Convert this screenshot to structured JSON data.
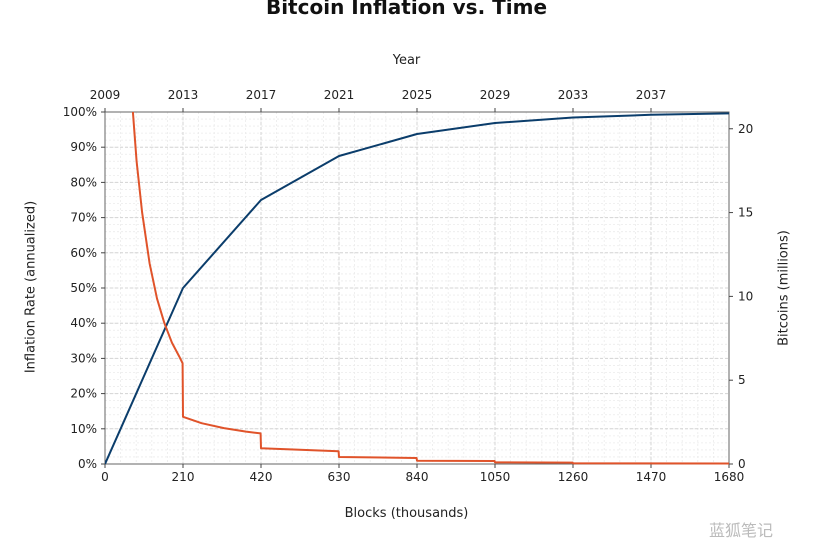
{
  "chart_data": {
    "type": "line",
    "title": "Bitcoin Inflation vs. Time",
    "xlabel": "Blocks (thousands)",
    "xlabel_top": "Year",
    "ylabel_left": "Inflation Rate (annualized)",
    "ylabel_right": "Bitcoins (millions)",
    "xlim": [
      0,
      1680
    ],
    "ylim_left": [
      0,
      100
    ],
    "ylim_right": [
      0,
      21
    ],
    "x_ticks": [
      "0",
      "210",
      "420",
      "630",
      "840",
      "1050",
      "1260",
      "1470",
      "1680"
    ],
    "top_ticks": [
      {
        "x": 0,
        "label": "2009"
      },
      {
        "x": 210,
        "label": "2013"
      },
      {
        "x": 420,
        "label": "2017"
      },
      {
        "x": 630,
        "label": "2021"
      },
      {
        "x": 840,
        "label": "2025"
      },
      {
        "x": 1050,
        "label": "2029"
      },
      {
        "x": 1260,
        "label": "2033"
      },
      {
        "x": 1470,
        "label": "2037"
      }
    ],
    "y_left_ticks": [
      "0%",
      "10%",
      "20%",
      "30%",
      "40%",
      "50%",
      "60%",
      "70%",
      "80%",
      "90%",
      "100%"
    ],
    "y_right_ticks": [
      {
        "v": 0,
        "label": "0"
      },
      {
        "v": 5,
        "label": "5"
      },
      {
        "v": 10,
        "label": "10"
      },
      {
        "v": 15,
        "label": "15"
      },
      {
        "v": 20,
        "label": "20"
      }
    ],
    "grid": true,
    "series": [
      {
        "axis": "right",
        "color": "#0b3d6b",
        "x": [
          0,
          210,
          420,
          630,
          840,
          1050,
          1260,
          1470,
          1680
        ],
        "y": [
          0,
          10.5,
          15.75,
          18.375,
          19.6875,
          20.34375,
          20.671875,
          20.8359375,
          20.91796875
        ]
      },
      {
        "axis": "left",
        "color": "#e0532a",
        "x": [
          75,
          85,
          100,
          120,
          140,
          160,
          180,
          200,
          209,
          210,
          260,
          320,
          380,
          419,
          420,
          629,
          630,
          839,
          840,
          1049,
          1050,
          1259,
          1260,
          1680
        ],
        "y": [
          100,
          86,
          71.5,
          57,
          47,
          40,
          34.5,
          30.5,
          28.6,
          13.4,
          11.6,
          10.2,
          9.2,
          8.7,
          4.5,
          3.6,
          2.0,
          1.7,
          0.95,
          0.85,
          0.45,
          0.4,
          0.2,
          0.15
        ]
      }
    ]
  },
  "watermark_text": "蓝狐笔记"
}
